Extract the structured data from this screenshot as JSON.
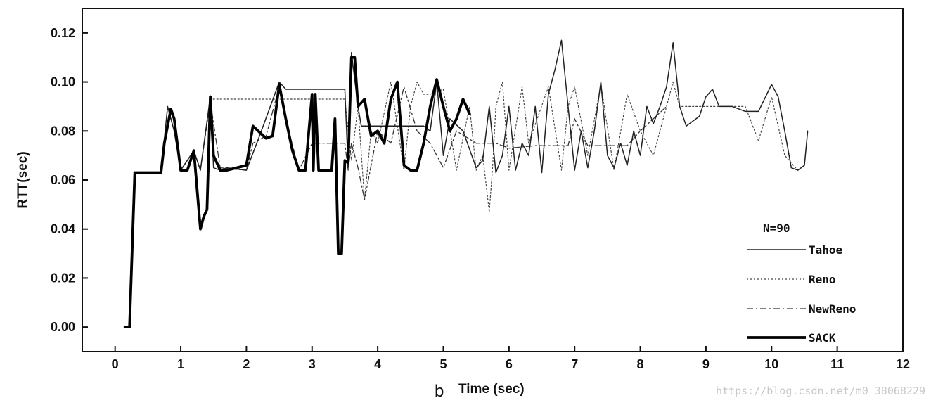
{
  "chart_data": {
    "type": "line",
    "title": "",
    "panel_label": "b",
    "xlabel": "Time (sec)",
    "ylabel": "RTT(sec)",
    "xlim": [
      -0.5,
      12
    ],
    "ylim": [
      -0.01,
      0.13
    ],
    "x_ticks": [
      0,
      1,
      2,
      3,
      4,
      5,
      6,
      7,
      8,
      9,
      10,
      11,
      12
    ],
    "x_tick_labels": [
      "0",
      "1",
      "2",
      "3",
      "4",
      "5",
      "6",
      "7",
      "8",
      "9",
      "10",
      "11",
      "12"
    ],
    "y_ticks": [
      0.0,
      0.02,
      0.04,
      0.06,
      0.08,
      0.1,
      0.12
    ],
    "y_tick_labels": [
      "0.00",
      "0.02",
      "0.04",
      "0.06",
      "0.08",
      "0.10",
      "0.12"
    ],
    "grid": false,
    "legend": {
      "placement": "bottom-right",
      "title": "N=90"
    },
    "watermark": "https://blog.csdn.net/m0_38068229",
    "series": [
      {
        "name": "Tahoe",
        "style": "solid",
        "color": "#222222",
        "x": [
          0.15,
          0.22,
          0.3,
          0.7,
          0.8,
          0.9,
          1.0,
          1.2,
          1.3,
          1.45,
          1.5,
          1.6,
          1.7,
          2.0,
          2.2,
          2.5,
          2.6,
          2.9,
          3.5,
          3.55,
          3.6,
          3.7,
          3.75,
          4.7,
          4.8,
          4.9,
          5.0,
          5.1,
          5.3,
          5.5,
          5.6,
          5.7,
          5.8,
          5.9,
          6.0,
          6.1,
          6.2,
          6.3,
          6.4,
          6.5,
          6.6,
          6.7,
          6.8,
          6.9,
          7.0,
          7.1,
          7.2,
          7.3,
          7.4,
          7.5,
          7.6,
          7.7,
          7.8,
          7.9,
          8.0,
          8.1,
          8.2,
          8.3,
          8.4,
          8.5,
          8.6,
          8.7,
          8.9,
          9.0,
          9.1,
          9.2,
          9.4,
          9.6,
          9.8,
          10.0,
          10.1,
          10.2,
          10.3,
          10.4,
          10.5,
          10.55
        ],
        "y": [
          0.0,
          0.0,
          0.063,
          0.063,
          0.09,
          0.08,
          0.064,
          0.072,
          0.064,
          0.094,
          0.065,
          0.064,
          0.065,
          0.064,
          0.078,
          0.1,
          0.097,
          0.097,
          0.097,
          0.065,
          0.112,
          0.09,
          0.082,
          0.082,
          0.08,
          0.1,
          0.07,
          0.085,
          0.08,
          0.065,
          0.068,
          0.09,
          0.063,
          0.07,
          0.09,
          0.064,
          0.075,
          0.07,
          0.09,
          0.063,
          0.095,
          0.105,
          0.117,
          0.09,
          0.064,
          0.08,
          0.065,
          0.08,
          0.1,
          0.07,
          0.065,
          0.075,
          0.066,
          0.08,
          0.07,
          0.09,
          0.083,
          0.09,
          0.098,
          0.116,
          0.09,
          0.082,
          0.086,
          0.094,
          0.097,
          0.09,
          0.09,
          0.088,
          0.088,
          0.099,
          0.094,
          0.08,
          0.065,
          0.064,
          0.066,
          0.08
        ]
      },
      {
        "name": "Reno",
        "style": "dotted",
        "color": "#444444",
        "x": [
          0.15,
          0.22,
          0.3,
          0.7,
          0.8,
          0.9,
          1.0,
          1.2,
          1.3,
          1.45,
          1.5,
          1.9,
          2.5,
          3.5,
          3.6,
          3.7,
          3.8,
          3.9,
          4.0,
          4.2,
          4.4,
          4.5,
          4.6,
          4.7,
          4.8,
          5.0,
          5.2,
          5.4,
          5.5,
          5.6,
          5.7,
          5.75,
          5.8,
          5.9,
          6.0,
          6.2,
          6.3,
          6.6,
          6.8,
          6.9,
          7.0,
          7.2,
          7.4,
          7.6,
          7.8,
          8.0,
          8.2,
          8.4,
          8.5,
          8.6,
          8.8,
          9.0,
          9.4,
          9.6,
          9.8,
          10.0,
          10.2,
          10.4,
          10.5
        ],
        "y": [
          0.0,
          0.0,
          0.063,
          0.063,
          0.09,
          0.08,
          0.064,
          0.072,
          0.064,
          0.093,
          0.093,
          0.093,
          0.093,
          0.093,
          0.068,
          0.09,
          0.052,
          0.08,
          0.075,
          0.1,
          0.064,
          0.09,
          0.1,
          0.095,
          0.095,
          0.097,
          0.064,
          0.09,
          0.064,
          0.07,
          0.047,
          0.065,
          0.09,
          0.1,
          0.064,
          0.098,
          0.075,
          0.098,
          0.064,
          0.09,
          0.098,
          0.07,
          0.099,
          0.064,
          0.095,
          0.08,
          0.07,
          0.09,
          0.1,
          0.09,
          0.09,
          0.09,
          0.09,
          0.09,
          0.076,
          0.094,
          0.07,
          0.064,
          0.066
        ]
      },
      {
        "name": "NewReno",
        "style": "dashdot",
        "color": "#333333",
        "x": [
          0.15,
          0.22,
          0.3,
          0.7,
          0.8,
          0.9,
          1.0,
          1.2,
          1.3,
          1.45,
          1.6,
          2.0,
          2.1,
          2.3,
          2.5,
          2.6,
          2.8,
          3.0,
          3.3,
          3.4,
          3.5,
          3.55,
          3.6,
          3.7,
          3.8,
          4.0,
          4.2,
          4.4,
          4.6,
          4.8,
          5.0,
          5.2,
          5.5,
          5.8,
          6.0,
          6.4,
          6.6,
          6.9,
          7.0,
          7.2,
          7.5,
          7.8,
          8.0,
          8.4
        ],
        "y": [
          0.0,
          0.0,
          0.063,
          0.063,
          0.09,
          0.08,
          0.064,
          0.072,
          0.064,
          0.092,
          0.065,
          0.064,
          0.075,
          0.078,
          0.098,
          0.085,
          0.064,
          0.075,
          0.075,
          0.075,
          0.075,
          0.064,
          0.075,
          0.065,
          0.052,
          0.08,
          0.075,
          0.098,
          0.08,
          0.075,
          0.065,
          0.08,
          0.075,
          0.075,
          0.073,
          0.074,
          0.074,
          0.074,
          0.085,
          0.074,
          0.074,
          0.074,
          0.08,
          0.09
        ]
      },
      {
        "name": "SACK",
        "style": "thick",
        "color": "#000000",
        "x": [
          0.15,
          0.22,
          0.3,
          0.7,
          0.75,
          0.85,
          0.9,
          1.0,
          1.1,
          1.2,
          1.3,
          1.35,
          1.4,
          1.45,
          1.5,
          1.6,
          1.7,
          2.0,
          2.1,
          2.3,
          2.4,
          2.5,
          2.6,
          2.7,
          2.8,
          2.9,
          3.0,
          3.02,
          3.05,
          3.1,
          3.3,
          3.35,
          3.4,
          3.45,
          3.5,
          3.55,
          3.6,
          3.65,
          3.7,
          3.8,
          3.9,
          4.0,
          4.1,
          4.2,
          4.3,
          4.4,
          4.5,
          4.6,
          4.7,
          4.8,
          4.9,
          5.0,
          5.1,
          5.2,
          5.3,
          5.4
        ],
        "y": [
          0.0,
          0.0,
          0.063,
          0.063,
          0.075,
          0.089,
          0.085,
          0.064,
          0.064,
          0.072,
          0.04,
          0.045,
          0.048,
          0.094,
          0.07,
          0.064,
          0.064,
          0.066,
          0.082,
          0.077,
          0.078,
          0.099,
          0.085,
          0.072,
          0.064,
          0.064,
          0.095,
          0.064,
          0.095,
          0.064,
          0.064,
          0.085,
          0.03,
          0.03,
          0.068,
          0.067,
          0.11,
          0.11,
          0.09,
          0.093,
          0.078,
          0.08,
          0.075,
          0.093,
          0.1,
          0.066,
          0.064,
          0.064,
          0.075,
          0.09,
          0.101,
          0.09,
          0.08,
          0.085,
          0.093,
          0.087
        ]
      }
    ]
  }
}
